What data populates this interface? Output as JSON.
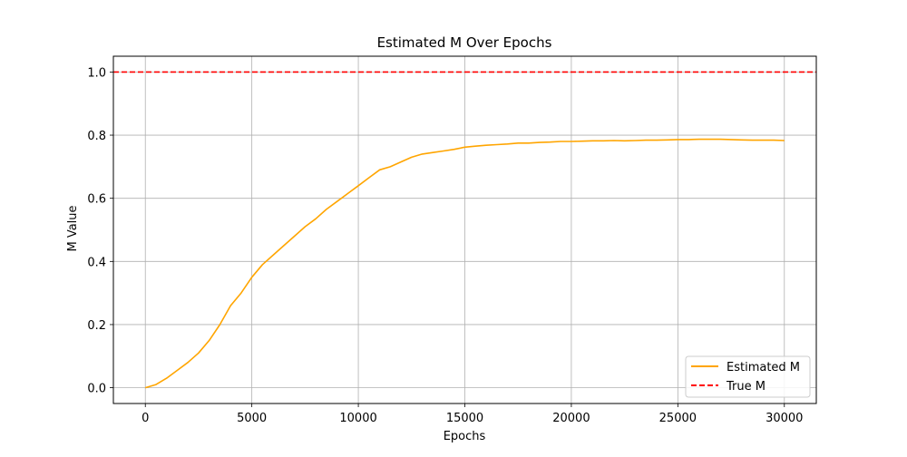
{
  "chart_data": {
    "type": "line",
    "title": "Estimated M Over Epochs",
    "xlabel": "Epochs",
    "ylabel": "M Value",
    "xlim": [
      -1500,
      31500
    ],
    "ylim": [
      -0.05,
      1.05
    ],
    "xticks": [
      0,
      5000,
      10000,
      15000,
      20000,
      25000,
      30000
    ],
    "xtick_labels": [
      "0",
      "5000",
      "10000",
      "15000",
      "20000",
      "25000",
      "30000"
    ],
    "yticks": [
      0.0,
      0.2,
      0.4,
      0.6,
      0.8,
      1.0
    ],
    "ytick_labels": [
      "0.0",
      "0.2",
      "0.4",
      "0.6",
      "0.8",
      "1.0"
    ],
    "grid": true,
    "legend_position": "lower-right",
    "series": [
      {
        "name": "Estimated M",
        "color": "#ffa500",
        "style": "solid",
        "x": [
          0,
          500,
          1000,
          1500,
          2000,
          2500,
          3000,
          3500,
          4000,
          4500,
          5000,
          5500,
          6000,
          6500,
          7000,
          7500,
          8000,
          8500,
          9000,
          9500,
          10000,
          10500,
          11000,
          11500,
          12000,
          12500,
          13000,
          13500,
          14000,
          14500,
          15000,
          15500,
          16000,
          16500,
          17000,
          17500,
          18000,
          18500,
          19000,
          19500,
          20000,
          20500,
          21000,
          21500,
          22000,
          22500,
          23000,
          23500,
          24000,
          24500,
          25000,
          25500,
          26000,
          26500,
          27000,
          27500,
          28000,
          28500,
          29000,
          29500,
          30000
        ],
        "y": [
          0.0,
          0.01,
          0.03,
          0.055,
          0.08,
          0.11,
          0.15,
          0.2,
          0.26,
          0.3,
          0.35,
          0.39,
          0.42,
          0.45,
          0.48,
          0.51,
          0.535,
          0.565,
          0.59,
          0.615,
          0.64,
          0.665,
          0.69,
          0.7,
          0.715,
          0.73,
          0.74,
          0.745,
          0.75,
          0.755,
          0.762,
          0.765,
          0.768,
          0.77,
          0.772,
          0.775,
          0.775,
          0.777,
          0.778,
          0.78,
          0.78,
          0.781,
          0.782,
          0.782,
          0.783,
          0.782,
          0.783,
          0.784,
          0.784,
          0.785,
          0.786,
          0.786,
          0.787,
          0.787,
          0.787,
          0.786,
          0.785,
          0.784,
          0.784,
          0.784,
          0.783
        ]
      },
      {
        "name": "True M",
        "color": "#ff0000",
        "style": "dashed",
        "hline": 1.0
      }
    ]
  }
}
